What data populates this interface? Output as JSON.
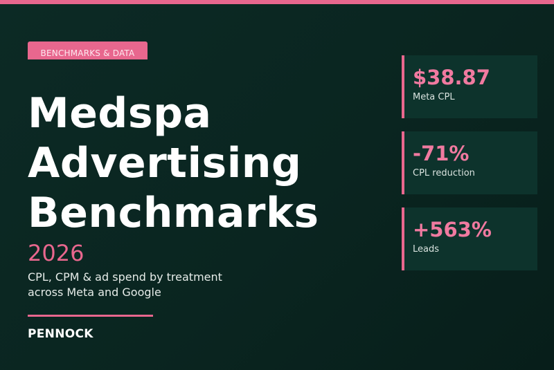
{
  "badge": "BENCHMARKS & DATA",
  "title_lines": [
    "Medspa",
    "Advertising",
    "Benchmarks"
  ],
  "year": "2026",
  "subtitle": "CPL, CPM & ad spend by treatment across Meta and Google",
  "brand": "PENNOCK",
  "stats": [
    {
      "value": "$38.87",
      "label": "Meta CPL"
    },
    {
      "value": "-71%",
      "label": "CPL reduction"
    },
    {
      "value": "+563%",
      "label": "Leads"
    }
  ],
  "colors": {
    "background": "#0a2520",
    "accent": "#e8678e",
    "card": "#0d332c",
    "text": "#ffffff"
  }
}
